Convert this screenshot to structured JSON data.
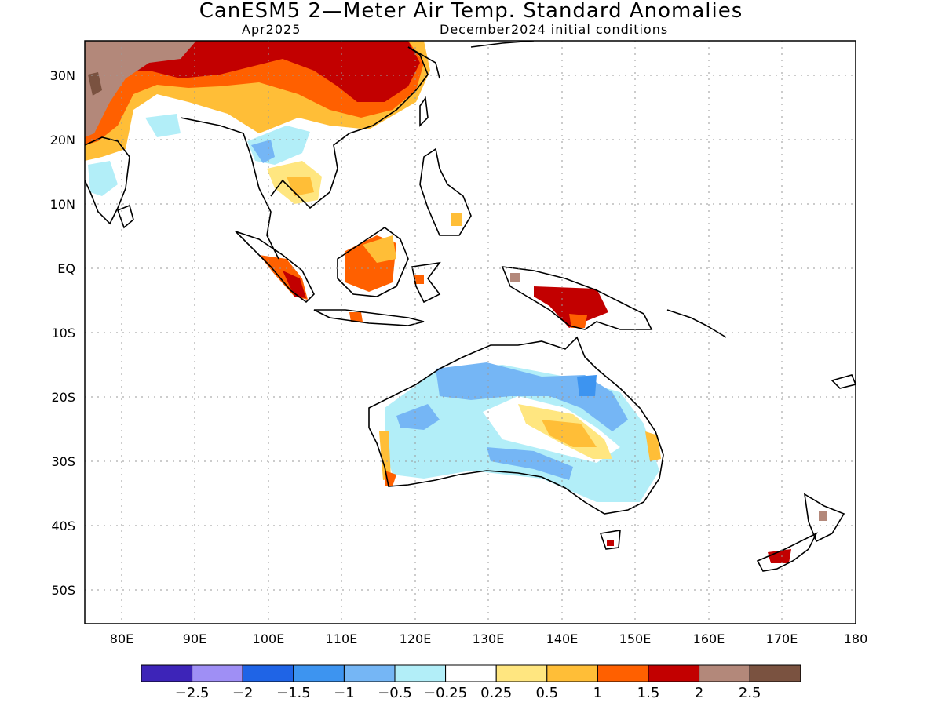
{
  "header": {
    "title": "CanESM5 2—Meter Air Temp. Standard Anomalies",
    "valid_month": "Apr2025",
    "init": "December2024 initial conditions"
  },
  "axes": {
    "lon_ticks": [
      "80E",
      "90E",
      "100E",
      "110E",
      "120E",
      "130E",
      "140E",
      "150E",
      "160E",
      "170E",
      "180"
    ],
    "lat_ticks": [
      "30N",
      "20N",
      "10N",
      "EQ",
      "10S",
      "20S",
      "30S",
      "40S",
      "50S"
    ]
  },
  "colorbar": {
    "colors": [
      "#3d24b8",
      "#9f8ff5",
      "#1f64e6",
      "#3d94f0",
      "#75b6f5",
      "#b2eef8",
      "#ffffff",
      "#ffe680",
      "#ffbe37",
      "#ff6000",
      "#c20000",
      "#b3887a",
      "#7a5240"
    ],
    "labels": [
      "−2.5",
      "−2",
      "−1.5",
      "−1",
      "−0.5",
      "−0.25",
      "0.25",
      "0.5",
      "1",
      "1.5",
      "2",
      "2.5"
    ]
  },
  "regions": [
    {
      "name": "asia-north-warm",
      "value": ">2"
    },
    {
      "name": "central-australia-warm",
      "value": "0.5–1"
    },
    {
      "name": "north-australia-cool",
      "value": "−1"
    }
  ]
}
